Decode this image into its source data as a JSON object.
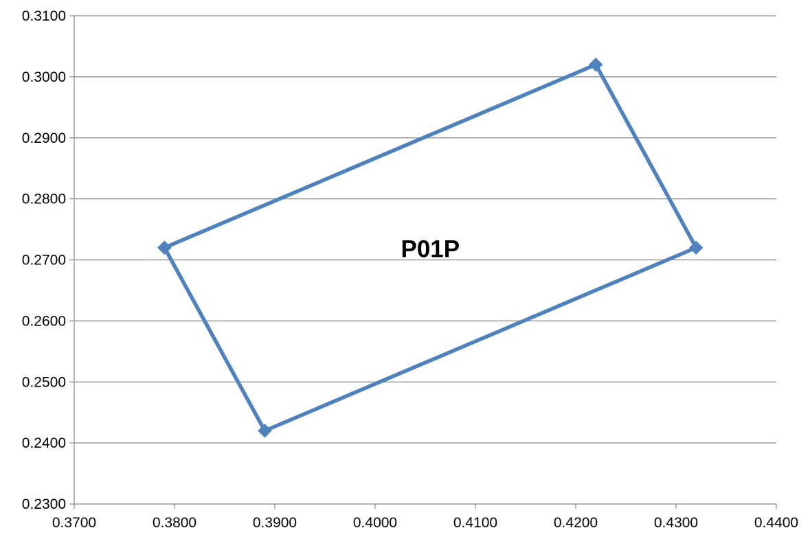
{
  "chart_data": {
    "type": "scatter",
    "title": "",
    "xlabel": "",
    "ylabel": "",
    "xlim": [
      0.37,
      0.44
    ],
    "ylim": [
      0.23,
      0.31
    ],
    "x_ticks": [
      "0.3700",
      "0.3800",
      "0.3900",
      "0.4000",
      "0.4100",
      "0.4200",
      "0.4300",
      "0.4400"
    ],
    "y_ticks": [
      "0.2300",
      "0.2400",
      "0.2500",
      "0.2600",
      "0.2700",
      "0.2800",
      "0.2900",
      "0.3000",
      "0.3100"
    ],
    "grid": "horizontal",
    "legend": "none",
    "series": [
      {
        "color": "#4F81BD",
        "marker": "diamond",
        "lines": true,
        "points": [
          {
            "x": 0.379,
            "y": 0.272
          },
          {
            "x": 0.422,
            "y": 0.302
          },
          {
            "x": 0.432,
            "y": 0.272
          },
          {
            "x": 0.389,
            "y": 0.242
          },
          {
            "x": 0.379,
            "y": 0.272
          }
        ]
      }
    ],
    "annotations": [
      {
        "text": "P01P",
        "x": 0.4055,
        "y": 0.2718
      }
    ]
  }
}
